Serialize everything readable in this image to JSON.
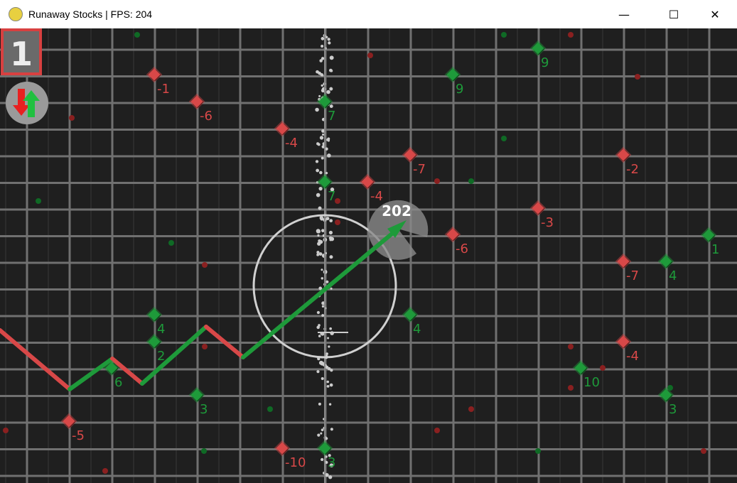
{
  "window": {
    "title": "Runaway Stocks | FPS: 204",
    "minimize_icon": "minimize-icon",
    "maximize_icon": "maximize-icon",
    "close_icon": "close-icon"
  },
  "hud": {
    "level": "1",
    "swap_icon": "up-down-arrows-icon",
    "gauge_value": "202"
  },
  "colors": {
    "background": "#1f1f1f",
    "grid": "#707070",
    "up": "#1e9a3a",
    "down": "#d84848"
  },
  "stocks": [
    {
      "value": "-1",
      "dir": "down"
    },
    {
      "value": "-6",
      "dir": "down"
    },
    {
      "value": "-4",
      "dir": "down"
    },
    {
      "value": "-7",
      "dir": "down"
    },
    {
      "value": "-4",
      "dir": "down"
    },
    {
      "value": "-3",
      "dir": "down"
    },
    {
      "value": "-6",
      "dir": "down"
    },
    {
      "value": "-2",
      "dir": "down"
    },
    {
      "value": "-7",
      "dir": "down"
    },
    {
      "value": "-4",
      "dir": "down"
    },
    {
      "value": "-5",
      "dir": "down"
    },
    {
      "value": "-10",
      "dir": "down"
    },
    {
      "value": "9",
      "dir": "up"
    },
    {
      "value": "9",
      "dir": "up"
    },
    {
      "value": "7",
      "dir": "up"
    },
    {
      "value": "7",
      "dir": "up"
    },
    {
      "value": "1",
      "dir": "up"
    },
    {
      "value": "4",
      "dir": "up"
    },
    {
      "value": "4",
      "dir": "up"
    },
    {
      "value": "4",
      "dir": "up"
    },
    {
      "value": "2",
      "dir": "up"
    },
    {
      "value": "6",
      "dir": "up"
    },
    {
      "value": "10",
      "dir": "up"
    },
    {
      "value": "3",
      "dir": "up"
    },
    {
      "value": "3",
      "dir": "up"
    },
    {
      "value": "3",
      "dir": "up"
    }
  ]
}
